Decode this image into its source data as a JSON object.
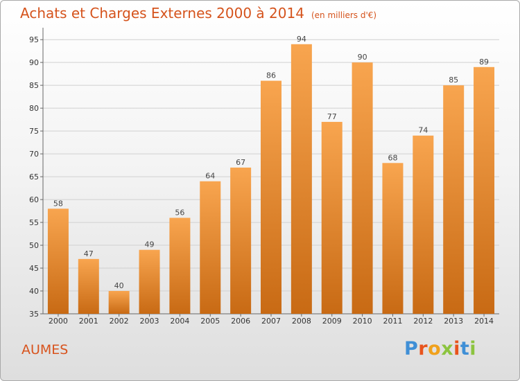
{
  "header": {
    "title": "Achats et Charges Externes 2000 à 2014",
    "unit": "(en milliers d'€)"
  },
  "footer": {
    "commune": "AUMES",
    "brand": "Proxiti",
    "brand_letters": [
      {
        "ch": "P",
        "color": "#3f8fd6"
      },
      {
        "ch": "r",
        "color": "#e8541d"
      },
      {
        "ch": "o",
        "color": "#f0a11c"
      },
      {
        "ch": "x",
        "color": "#8cc43f"
      },
      {
        "ch": "i",
        "color": "#e8541d"
      },
      {
        "ch": "t",
        "color": "#3f8fd6"
      },
      {
        "ch": "i",
        "color": "#8cc43f"
      }
    ]
  },
  "colors": {
    "bar_top": "#f8a54f",
    "bar_bottom": "#c86a14",
    "grid": "#d0d0d0",
    "title": "#d5531c"
  },
  "chart_data": {
    "type": "bar",
    "title": "Achats et Charges Externes 2000 à 2014",
    "subtitle": "(en milliers d'€)",
    "categories": [
      "2000",
      "2001",
      "2002",
      "2003",
      "2004",
      "2005",
      "2006",
      "2007",
      "2008",
      "2009",
      "2010",
      "2011",
      "2012",
      "2013",
      "2014"
    ],
    "values": [
      58,
      47,
      40,
      49,
      56,
      64,
      67,
      86,
      94,
      77,
      90,
      68,
      74,
      85,
      89
    ],
    "ylim": [
      35,
      97
    ],
    "yticks": [
      35,
      40,
      45,
      50,
      55,
      60,
      65,
      70,
      75,
      80,
      85,
      90,
      95
    ],
    "grid": true,
    "data_labels": true
  }
}
